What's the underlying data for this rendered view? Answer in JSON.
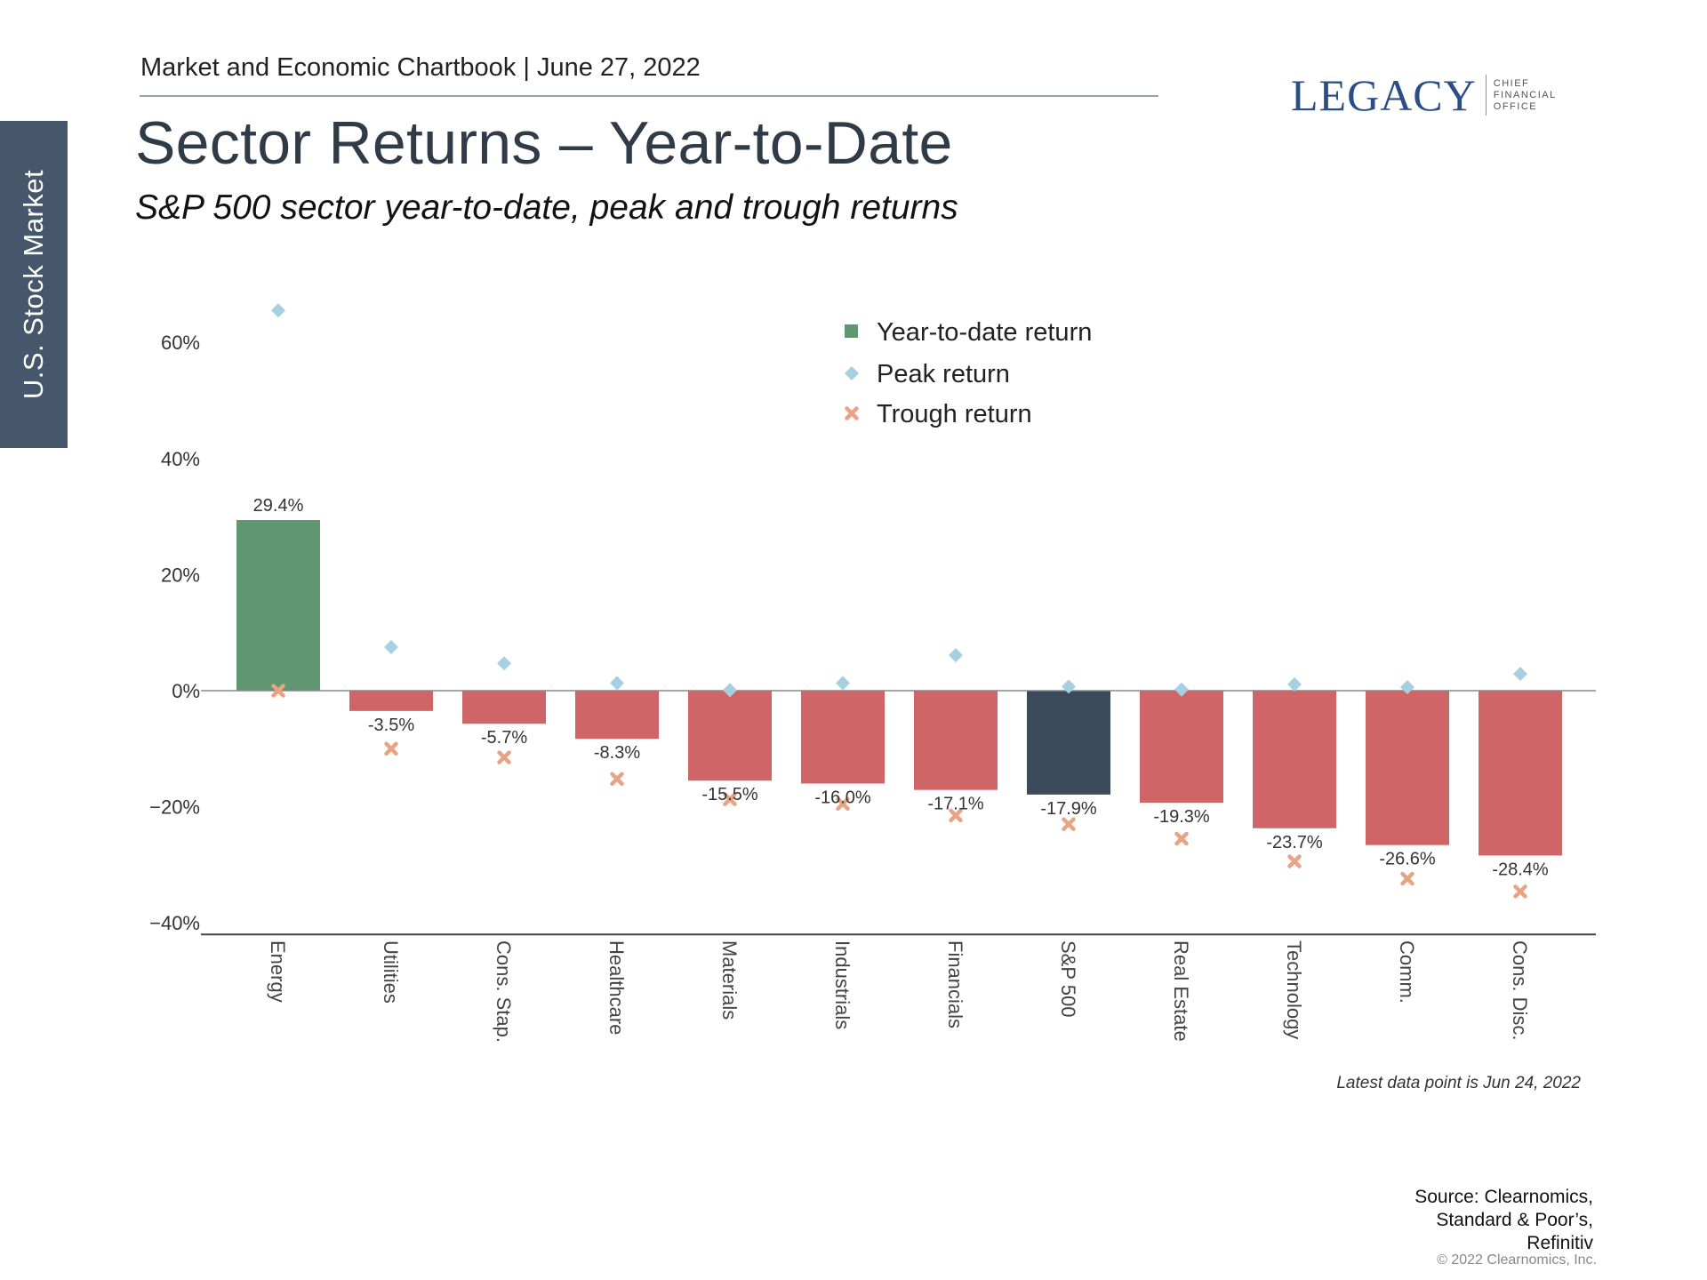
{
  "header": {
    "chartbook": "Market and Economic Chartbook | June 27, 2022",
    "title": "Sector Returns – Year-to-Date",
    "subtitle": "S&P 500 sector year-to-date, peak and trough returns"
  },
  "side_tab": {
    "label": "U.S. Stock Market"
  },
  "logo": {
    "wordmark": "LEGACY",
    "line1": "CHIEF",
    "line2": "FINANCIAL",
    "line3": "OFFICE"
  },
  "colors": {
    "positive": "#5e9770",
    "negative": "#cf6566",
    "benchmark": "#3b4b5c",
    "peak": "#a6d0e2",
    "trough": "#e8a384"
  },
  "chart_data": {
    "type": "bar",
    "title": "S&P 500 sector year-to-date, peak and trough returns",
    "xlabel": "",
    "ylabel": "",
    "ylim": [
      -40,
      70
    ],
    "yticks": [
      -40,
      -20,
      0,
      20,
      40,
      60
    ],
    "ytick_labels": [
      "−40%",
      "−20%",
      "0%",
      "20%",
      "40%",
      "60%"
    ],
    "categories": [
      "Energy",
      "Utilities",
      "Cons. Stap.",
      "Healthcare",
      "Materials",
      "Industrials",
      "Financials",
      "S&P 500",
      "Real Estate",
      "Technology",
      "Comm.",
      "Cons. Disc."
    ],
    "legend": [
      "Year-to-date return",
      "Peak return",
      "Trough return"
    ],
    "legend_position": "top-center",
    "series": [
      {
        "name": "Year-to-date return",
        "values": [
          29.4,
          -3.5,
          -5.7,
          -8.3,
          -15.5,
          -16.0,
          -17.1,
          -17.9,
          -19.3,
          -23.7,
          -26.6,
          -28.4
        ],
        "labels": [
          "29.4%",
          "-3.5%",
          "-5.7%",
          "-8.3%",
          "-15.5%",
          "-16.0%",
          "-17.1%",
          "-17.9%",
          "-19.3%",
          "-23.7%",
          "-26.6%",
          "-28.4%"
        ]
      },
      {
        "name": "Peak return",
        "values": [
          65.5,
          7.5,
          4.7,
          1.3,
          0.1,
          1.3,
          6.1,
          0.7,
          0.2,
          1.1,
          0.6,
          2.9
        ]
      },
      {
        "name": "Trough return",
        "values": [
          0.0,
          -10.0,
          -11.5,
          -15.2,
          -18.7,
          -19.5,
          -21.5,
          -23.0,
          -25.5,
          -29.4,
          -32.4,
          -34.6
        ]
      }
    ]
  },
  "footnote": "Latest data point is Jun 24, 2022",
  "source": {
    "line1": "Source: Clearnomics,",
    "line2": "Standard & Poor’s,",
    "line3": "Refinitiv"
  },
  "copyright": "© 2022 Clearnomics, Inc."
}
